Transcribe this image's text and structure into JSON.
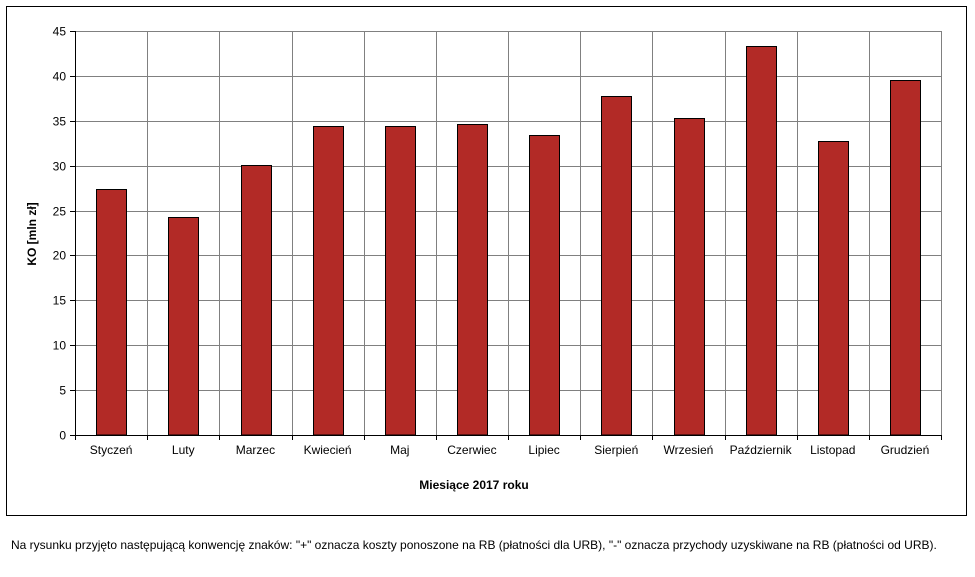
{
  "chart_data": {
    "type": "bar",
    "title": "",
    "xlabel": "Miesiące 2017  roku",
    "ylabel": "KO [mln zł]",
    "categories": [
      "Styczeń",
      "Luty",
      "Marzec",
      "Kwiecień",
      "Maj",
      "Czerwiec",
      "Lipiec",
      "Sierpień",
      "Wrzesień",
      "Październik",
      "Listopad",
      "Grudzień"
    ],
    "values": [
      27.4,
      24.3,
      30.1,
      34.4,
      34.4,
      34.6,
      33.4,
      37.8,
      35.3,
      43.3,
      32.7,
      39.5
    ],
    "ylim": [
      0,
      45
    ],
    "yticks": [
      "0",
      "5",
      "10",
      "15",
      "20",
      "25",
      "30",
      "35",
      "40",
      "45"
    ],
    "grid": true,
    "legend": "none",
    "bar_color": "#b22a26",
    "grid_color": "#808080"
  },
  "footnote": "Na rysunku przyjęto następującą konwencję znaków: \"+\" oznacza koszty ponoszone na RB (płatności dla URB), \"-\" oznacza przychody uzyskiwane na RB (płatności od URB)."
}
